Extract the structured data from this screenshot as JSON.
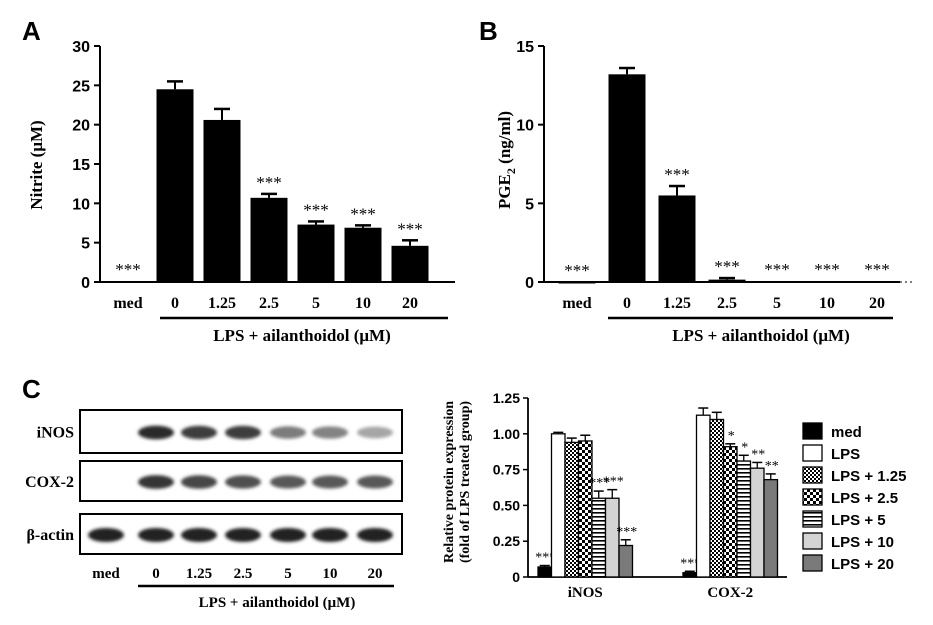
{
  "panels": {
    "A": {
      "letter": "A"
    },
    "B": {
      "letter": "B"
    },
    "C": {
      "letter": "C"
    }
  },
  "group_label": "LPS + ailanthoidol (μM)",
  "chart_data": [
    {
      "type": "bar",
      "panel": "A",
      "ylabel": "Nitrite (μM)",
      "categories": [
        "med",
        "0",
        "1.25",
        "2.5",
        "5",
        "10",
        "20"
      ],
      "values": [
        0.1,
        24.5,
        20.6,
        10.7,
        7.3,
        6.9,
        4.6
      ],
      "errors": [
        0,
        1.0,
        1.4,
        0.5,
        0.4,
        0.3,
        0.7
      ],
      "significance": [
        "***",
        "",
        "",
        "***",
        "***",
        "***",
        "***"
      ],
      "yticks": [
        0,
        5,
        10,
        15,
        20,
        25,
        30
      ],
      "ylim": [
        0,
        30
      ],
      "color": "#000000",
      "xlabel": "LPS + ailanthoidol (μM)"
    },
    {
      "type": "bar",
      "panel": "B",
      "ylabel": "PGE2 (ng/ml)",
      "ylabel_main": "PGE",
      "ylabel_sub": "2",
      "ylabel_rest": " (ng/ml)",
      "categories": [
        "med",
        "0",
        "1.25",
        "2.5",
        "5",
        "10",
        "20"
      ],
      "values": [
        0.0,
        13.2,
        5.5,
        0.15,
        0.05,
        0.05,
        0.05
      ],
      "errors": [
        0,
        0.4,
        0.6,
        0.1,
        0,
        0,
        0
      ],
      "significance": [
        "***",
        "",
        "***",
        "***",
        "***",
        "***",
        "***"
      ],
      "yticks": [
        0,
        5,
        10,
        15
      ],
      "ylim": [
        0,
        15
      ],
      "color": "#000000",
      "xlabel": "LPS + ailanthoidol (μM)"
    },
    {
      "type": "bar",
      "panel": "C-chart",
      "ylabel_line1": "Relative protein expression",
      "ylabel_line2": "(fold of LPS treated group)",
      "categories": [
        "iNOS",
        "COX-2"
      ],
      "series": [
        {
          "name": "med",
          "values": [
            0.07,
            0.03
          ],
          "errors": [
            0.01,
            0.01
          ],
          "significance": [
            "***",
            "***"
          ],
          "fill": "solid-black"
        },
        {
          "name": "LPS",
          "values": [
            1.0,
            1.13
          ],
          "errors": [
            0.01,
            0.05
          ],
          "significance": [
            "",
            ""
          ],
          "fill": "white"
        },
        {
          "name": "LPS + 1.25",
          "values": [
            0.94,
            1.1
          ],
          "errors": [
            0.03,
            0.05
          ],
          "significance": [
            "",
            ""
          ],
          "fill": "fine-check"
        },
        {
          "name": "LPS + 2.5",
          "values": [
            0.95,
            0.91
          ],
          "errors": [
            0.04,
            0.02
          ],
          "significance": [
            "",
            "*"
          ],
          "fill": "coarse-check"
        },
        {
          "name": "LPS + 5",
          "values": [
            0.55,
            0.81
          ],
          "errors": [
            0.05,
            0.04
          ],
          "significance": [
            "***",
            "*"
          ],
          "fill": "h-lines"
        },
        {
          "name": "LPS + 10",
          "values": [
            0.55,
            0.76
          ],
          "errors": [
            0.06,
            0.04
          ],
          "significance": [
            "***",
            "**"
          ],
          "fill": "light-gray"
        },
        {
          "name": "LPS + 20",
          "values": [
            0.22,
            0.68
          ],
          "errors": [
            0.04,
            0.04
          ],
          "significance": [
            "***",
            "**"
          ],
          "fill": "dark-gray"
        }
      ],
      "yticks": [
        "0",
        "0.25",
        "0.50",
        "0.75",
        "1.00",
        "1.25"
      ],
      "ylim": [
        0,
        1.25
      ]
    }
  ],
  "blot": {
    "rows": [
      "iNOS",
      "COX-2",
      "β-actin"
    ],
    "lanes": [
      "med",
      "0",
      "1.25",
      "2.5",
      "5",
      "10",
      "20"
    ],
    "intensity": {
      "iNOS": [
        0.0,
        0.95,
        0.85,
        0.85,
        0.5,
        0.45,
        0.25
      ],
      "COX-2": [
        0.0,
        0.9,
        0.8,
        0.75,
        0.7,
        0.7,
        0.7
      ],
      "β-actin": [
        1.0,
        1.0,
        1.0,
        1.0,
        1.0,
        1.0,
        1.0
      ]
    }
  }
}
